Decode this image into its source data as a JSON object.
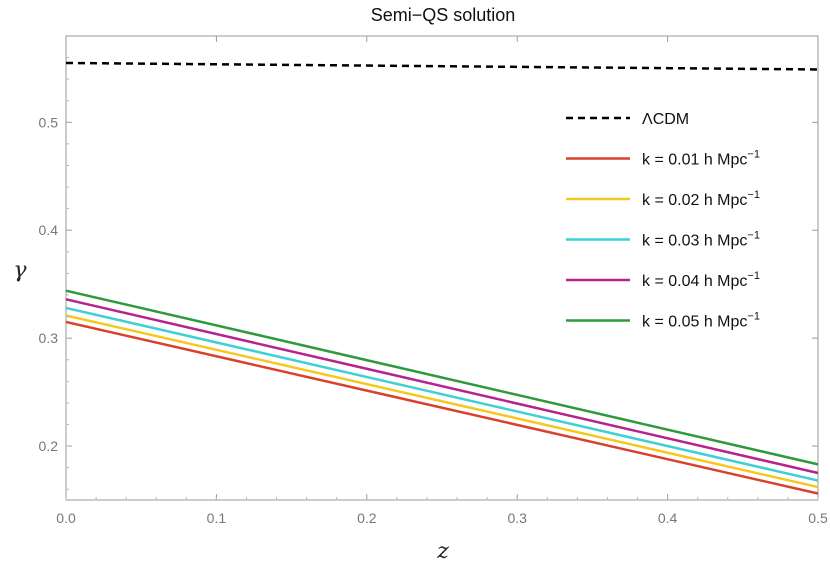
{
  "chart_data": {
    "type": "line",
    "title": "Semi−QS solution",
    "xlabel": "z",
    "ylabel": "γ",
    "xlim": [
      0,
      0.5
    ],
    "ylim": [
      0.15,
      0.58
    ],
    "x_ticks": [
      "0.0",
      "0.1",
      "0.2",
      "0.3",
      "0.4",
      "0.5"
    ],
    "y_ticks": [
      "0.2",
      "0.3",
      "0.4",
      "0.5"
    ],
    "grid": false,
    "legend_position": "right",
    "series": [
      {
        "name": "ΛCDM",
        "color": "#000000",
        "dash": true,
        "x": [
          0.0,
          0.5
        ],
        "y": [
          0.555,
          0.549
        ]
      },
      {
        "name": "k = 0.01 h Mpc",
        "sup": "−1",
        "color": "#d9412b",
        "dash": false,
        "x": [
          0.0,
          0.5
        ],
        "y": [
          0.315,
          0.156
        ]
      },
      {
        "name": "k = 0.02 h Mpc",
        "sup": "−1",
        "color": "#f5c821",
        "dash": false,
        "x": [
          0.0,
          0.5
        ],
        "y": [
          0.321,
          0.162
        ]
      },
      {
        "name": "k = 0.03 h Mpc",
        "sup": "−1",
        "color": "#3fcfd6",
        "dash": false,
        "x": [
          0.0,
          0.5
        ],
        "y": [
          0.328,
          0.168
        ]
      },
      {
        "name": "k = 0.04 h Mpc",
        "sup": "−1",
        "color": "#b5238f",
        "dash": false,
        "x": [
          0.0,
          0.5
        ],
        "y": [
          0.336,
          0.175
        ]
      },
      {
        "name": "k = 0.05 h Mpc",
        "sup": "−1",
        "color": "#2e9a3c",
        "dash": false,
        "x": [
          0.0,
          0.5
        ],
        "y": [
          0.344,
          0.183
        ]
      }
    ]
  }
}
